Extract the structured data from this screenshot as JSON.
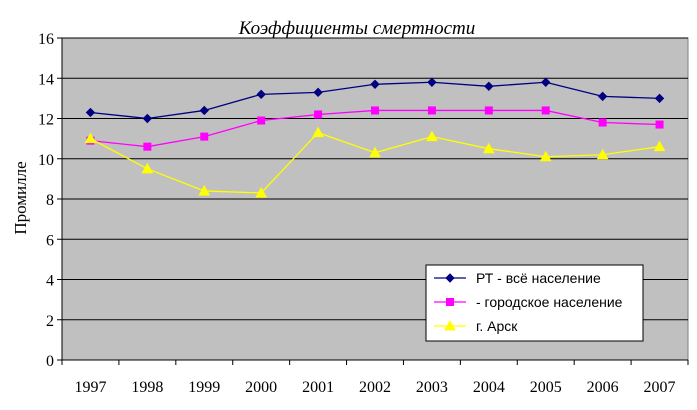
{
  "chart_data": {
    "type": "line",
    "title": "Коэффициенты смертности",
    "xlabel": "",
    "ylabel": "Промилле",
    "ylim": [
      0,
      16
    ],
    "yticks": [
      0,
      2,
      4,
      6,
      8,
      10,
      12,
      14,
      16
    ],
    "categories": [
      "1997",
      "1998",
      "1999",
      "2000",
      "2001",
      "2002",
      "2003",
      "2004",
      "2005",
      "2006",
      "2007"
    ],
    "grid": "horizontal",
    "legend_position": "bottom-right",
    "plot_background": "#c0c0c0",
    "series": [
      {
        "name": "РТ - всё население",
        "color": "#000080",
        "marker": "diamond",
        "values": [
          12.3,
          12.0,
          12.4,
          13.2,
          13.3,
          13.7,
          13.8,
          13.6,
          13.8,
          13.1,
          13.0
        ]
      },
      {
        "name": "- городское население",
        "color": "#ff00ff",
        "marker": "square",
        "values": [
          10.9,
          10.6,
          11.1,
          11.9,
          12.2,
          12.4,
          12.4,
          12.4,
          12.4,
          11.8,
          11.7
        ]
      },
      {
        "name": "г. Арск",
        "color": "#ffff00",
        "marker": "triangle",
        "values": [
          11.0,
          9.5,
          8.4,
          8.3,
          11.3,
          10.3,
          11.1,
          10.5,
          10.1,
          10.2,
          10.6
        ]
      }
    ]
  }
}
